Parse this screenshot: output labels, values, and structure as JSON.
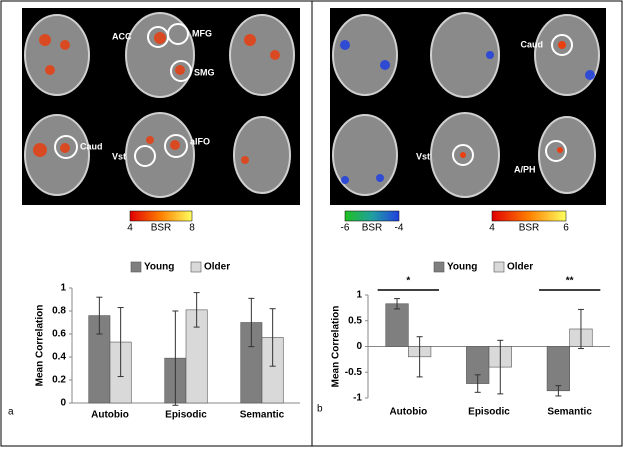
{
  "chart_data": [
    {
      "type": "bar",
      "ylabel": "Mean Correlation",
      "categories": [
        "Autobio",
        "Episodic",
        "Semantic"
      ],
      "series": [
        {
          "name": "Young",
          "color": "#7f7f7f",
          "values": [
            0.76,
            0.39,
            0.7
          ],
          "errors": [
            0.16,
            0.41,
            0.21
          ]
        },
        {
          "name": "Older",
          "color": "#d9d9d9",
          "values": [
            0.53,
            0.81,
            0.57
          ],
          "errors": [
            0.3,
            0.15,
            0.25
          ]
        }
      ],
      "ylim": [
        0,
        1
      ],
      "yticks": [
        0,
        0.2,
        0.4,
        0.6,
        0.8,
        1
      ],
      "panel": "a"
    },
    {
      "type": "bar",
      "ylabel": "Mean Correlation",
      "categories": [
        "Autobio",
        "Episodic",
        "Semantic"
      ],
      "series": [
        {
          "name": "Young",
          "color": "#7f7f7f",
          "values": [
            0.83,
            -0.72,
            -0.86
          ],
          "errors": [
            0.1,
            0.17,
            0.1
          ]
        },
        {
          "name": "Older",
          "color": "#d9d9d9",
          "values": [
            -0.2,
            -0.4,
            0.34
          ],
          "errors": [
            0.39,
            0.52,
            0.38
          ]
        }
      ],
      "ylim": [
        -1,
        1
      ],
      "yticks": [
        -1,
        -0.5,
        0,
        0.5,
        1
      ],
      "panel": "b",
      "annotations": [
        {
          "text": "*",
          "category": "Autobio"
        },
        {
          "text": "**",
          "category": "Semantic"
        }
      ]
    }
  ],
  "brain_labels": [
    "ACC",
    "MFG",
    "SMG",
    "Caud",
    "Vst",
    "aIFO",
    "Caud",
    "Vst",
    "A/PH"
  ],
  "colorbars": [
    {
      "min": 4,
      "label": "BSR",
      "max": 8
    },
    {
      "min": -6,
      "label": "BSR",
      "max": -4
    },
    {
      "min": 4,
      "label": "BSR",
      "max": 6
    }
  ]
}
